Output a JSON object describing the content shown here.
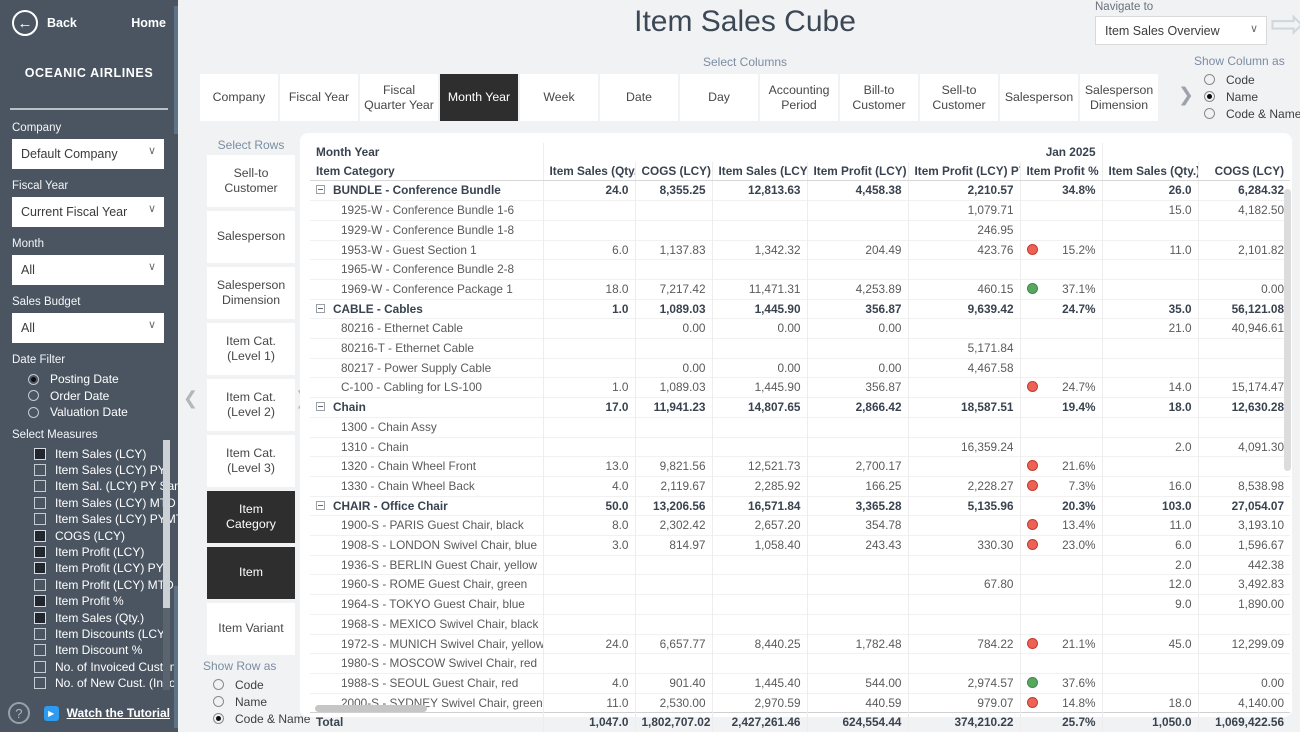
{
  "icons": {
    "back": "←",
    "dropdown_chevron": "∨",
    "navigate_arrow": "⇨",
    "chevron_right": "❯",
    "chevron_left": "❮",
    "play": "▶",
    "help": "?"
  },
  "sidebar": {
    "back_label": "Back",
    "home_label": "Home",
    "company_name": "OCEANIC AIRLINES",
    "filters": [
      {
        "label": "Company",
        "value": "Default Company"
      },
      {
        "label": "Fiscal Year",
        "value": "Current Fiscal Year"
      },
      {
        "label": "Month",
        "value": "All"
      },
      {
        "label": "Sales Budget",
        "value": "All"
      }
    ],
    "date_filter": {
      "label": "Date Filter",
      "options": [
        {
          "label": "Posting Date",
          "selected": true
        },
        {
          "label": "Order Date",
          "selected": false
        },
        {
          "label": "Valuation Date",
          "selected": false
        }
      ]
    },
    "measures": {
      "label": "Select Measures",
      "items": [
        {
          "label": "Item Sales (LCY)",
          "checked": true
        },
        {
          "label": "Item Sales (LCY) PY",
          "checked": false
        },
        {
          "label": "Item Sal. (LCY) PY Same Wk",
          "checked": false
        },
        {
          "label": "Item Sales (LCY) MTD",
          "checked": false
        },
        {
          "label": "Item Sales (LCY) PYMTD",
          "checked": false
        },
        {
          "label": "COGS (LCY)",
          "checked": true
        },
        {
          "label": "Item Profit (LCY)",
          "checked": true
        },
        {
          "label": "Item Profit (LCY) PY",
          "checked": true
        },
        {
          "label": "Item Profit (LCY) MTD",
          "checked": false
        },
        {
          "label": "Item Profit %",
          "checked": true
        },
        {
          "label": "Item Sales (Qty.)",
          "checked": true
        },
        {
          "label": "Item Discounts (LCY)",
          "checked": false
        },
        {
          "label": "Item Discount %",
          "checked": false
        },
        {
          "label": "No. of Invoiced Customers",
          "checked": false
        },
        {
          "label": "No. of New Cust. (Invoiced)",
          "checked": false
        }
      ]
    },
    "tutorial_label": "Watch the Tutorial"
  },
  "header": {
    "title": "Item Sales Cube",
    "navigate_to": {
      "label": "Navigate to",
      "value": "Item Sales Overview"
    }
  },
  "columns_panel": {
    "label": "Select Columns",
    "tabs": [
      {
        "label": "Company",
        "active": false
      },
      {
        "label": "Fiscal Year",
        "active": false
      },
      {
        "label": "Fiscal Quarter Year",
        "active": false
      },
      {
        "label": "Month Year",
        "active": true
      },
      {
        "label": "Week",
        "active": false
      },
      {
        "label": "Date",
        "active": false
      },
      {
        "label": "Day",
        "active": false
      },
      {
        "label": "Accounting Period",
        "active": false
      },
      {
        "label": "Bill-to Customer",
        "active": false
      },
      {
        "label": "Sell-to Customer",
        "active": false
      },
      {
        "label": "Salesperson",
        "active": false
      },
      {
        "label": "Salesperson Dimension",
        "active": false
      }
    ],
    "show_column_as": {
      "label": "Show Column as",
      "options": [
        {
          "label": "Code",
          "selected": false
        },
        {
          "label": "Name",
          "selected": true
        },
        {
          "label": "Code & Name",
          "selected": false
        }
      ]
    }
  },
  "rows_panel": {
    "label": "Select Rows",
    "buttons": [
      {
        "label": "Sell-to Customer",
        "active": false
      },
      {
        "label": "Salesperson",
        "active": false
      },
      {
        "label": "Salesperson Dimension",
        "active": false
      },
      {
        "label": "Item Cat. (Level 1)",
        "active": false
      },
      {
        "label": "Item Cat. (Level 2)",
        "active": false
      },
      {
        "label": "Item Cat. (Level 3)",
        "active": false
      },
      {
        "label": "Item Category",
        "active": true
      },
      {
        "label": "Item",
        "active": true
      },
      {
        "label": "Item Variant",
        "active": false
      }
    ],
    "show_row_as": {
      "label": "Show Row as",
      "options": [
        {
          "label": "Code",
          "selected": false
        },
        {
          "label": "Name",
          "selected": false
        },
        {
          "label": "Code & Name",
          "selected": true
        }
      ]
    }
  },
  "table": {
    "group": {
      "row_label": "Month Year",
      "month_label": "Jan 2025"
    },
    "columns": [
      "Item Category",
      "Item Sales (Qty.)",
      "COGS (LCY)",
      "Item Sales (LCY)",
      "Item Profit (LCY)",
      "Item Profit (LCY) PY",
      "Item Profit %",
      "Item Sales (Qty.)",
      "COGS (LCY)"
    ],
    "rows": [
      {
        "label": "BUNDLE - Conference Bundle",
        "level": "cat",
        "dot": null,
        "values": [
          "24.0",
          "8,355.25",
          "12,813.63",
          "4,458.38",
          "2,210.57",
          "34.8%",
          "26.0",
          "6,284.32"
        ]
      },
      {
        "label": "1925-W - Conference Bundle 1-6",
        "level": "item",
        "dot": null,
        "values": [
          "",
          "",
          "",
          "",
          "1,079.71",
          "",
          "15.0",
          "4,182.50"
        ]
      },
      {
        "label": "1929-W - Conference Bundle 1-8",
        "level": "item",
        "dot": null,
        "values": [
          "",
          "",
          "",
          "",
          "246.95",
          "",
          "",
          ""
        ]
      },
      {
        "label": "1953-W - Guest Section 1",
        "level": "item",
        "dot": "red",
        "values": [
          "6.0",
          "1,137.83",
          "1,342.32",
          "204.49",
          "423.76",
          "15.2%",
          "11.0",
          "2,101.82"
        ]
      },
      {
        "label": "1965-W - Conference Bundle 2-8",
        "level": "item",
        "dot": null,
        "values": [
          "",
          "",
          "",
          "",
          "",
          "",
          "",
          ""
        ]
      },
      {
        "label": "1969-W - Conference Package 1",
        "level": "item",
        "dot": "green",
        "values": [
          "18.0",
          "7,217.42",
          "11,471.31",
          "4,253.89",
          "460.15",
          "37.1%",
          "",
          "0.00"
        ]
      },
      {
        "label": "CABLE - Cables",
        "level": "cat",
        "dot": null,
        "values": [
          "1.0",
          "1,089.03",
          "1,445.90",
          "356.87",
          "9,639.42",
          "24.7%",
          "35.0",
          "56,121.08"
        ]
      },
      {
        "label": "80216 - Ethernet Cable",
        "level": "item",
        "dot": null,
        "values": [
          "",
          "0.00",
          "0.00",
          "0.00",
          "",
          "",
          "21.0",
          "40,946.61"
        ]
      },
      {
        "label": "80216-T - Ethernet Cable",
        "level": "item",
        "dot": null,
        "values": [
          "",
          "",
          "",
          "",
          "5,171.84",
          "",
          "",
          ""
        ]
      },
      {
        "label": "80217 - Power Supply Cable",
        "level": "item",
        "dot": null,
        "values": [
          "",
          "0.00",
          "0.00",
          "0.00",
          "4,467.58",
          "",
          "",
          ""
        ]
      },
      {
        "label": "C-100 - Cabling for LS-100",
        "level": "item",
        "dot": "red",
        "values": [
          "1.0",
          "1,089.03",
          "1,445.90",
          "356.87",
          "",
          "24.7%",
          "14.0",
          "15,174.47"
        ]
      },
      {
        "label": "Chain",
        "level": "cat",
        "dot": null,
        "values": [
          "17.0",
          "11,941.23",
          "14,807.65",
          "2,866.42",
          "18,587.51",
          "19.4%",
          "18.0",
          "12,630.28"
        ]
      },
      {
        "label": "1300 - Chain Assy",
        "level": "item",
        "dot": null,
        "values": [
          "",
          "",
          "",
          "",
          "",
          "",
          "",
          ""
        ]
      },
      {
        "label": "1310 - Chain",
        "level": "item",
        "dot": null,
        "values": [
          "",
          "",
          "",
          "",
          "16,359.24",
          "",
          "2.0",
          "4,091.30"
        ]
      },
      {
        "label": "1320 - Chain Wheel Front",
        "level": "item",
        "dot": "red",
        "values": [
          "13.0",
          "9,821.56",
          "12,521.73",
          "2,700.17",
          "",
          "21.6%",
          "",
          ""
        ]
      },
      {
        "label": "1330 - Chain Wheel Back",
        "level": "item",
        "dot": "red",
        "values": [
          "4.0",
          "2,119.67",
          "2,285.92",
          "166.25",
          "2,228.27",
          "7.3%",
          "16.0",
          "8,538.98"
        ]
      },
      {
        "label": "CHAIR - Office Chair",
        "level": "cat",
        "dot": null,
        "values": [
          "50.0",
          "13,206.56",
          "16,571.84",
          "3,365.28",
          "5,135.96",
          "20.3%",
          "103.0",
          "27,054.07"
        ]
      },
      {
        "label": "1900-S - PARIS Guest Chair, black",
        "level": "item",
        "dot": "red",
        "values": [
          "8.0",
          "2,302.42",
          "2,657.20",
          "354.78",
          "",
          "13.4%",
          "11.0",
          "3,193.10"
        ]
      },
      {
        "label": "1908-S - LONDON Swivel Chair, blue",
        "level": "item",
        "dot": "red",
        "values": [
          "3.0",
          "814.97",
          "1,058.40",
          "243.43",
          "330.30",
          "23.0%",
          "6.0",
          "1,596.67"
        ]
      },
      {
        "label": "1936-S - BERLIN Guest Chair, yellow",
        "level": "item",
        "dot": null,
        "values": [
          "",
          "",
          "",
          "",
          "",
          "",
          "2.0",
          "442.38"
        ]
      },
      {
        "label": "1960-S - ROME Guest Chair, green",
        "level": "item",
        "dot": null,
        "values": [
          "",
          "",
          "",
          "",
          "67.80",
          "",
          "12.0",
          "3,492.83"
        ]
      },
      {
        "label": "1964-S - TOKYO Guest Chair, blue",
        "level": "item",
        "dot": null,
        "values": [
          "",
          "",
          "",
          "",
          "",
          "",
          "9.0",
          "1,890.00"
        ]
      },
      {
        "label": "1968-S - MEXICO Swivel Chair, black",
        "level": "item",
        "dot": null,
        "values": [
          "",
          "",
          "",
          "",
          "",
          "",
          "",
          ""
        ]
      },
      {
        "label": "1972-S - MUNICH Swivel Chair, yellow",
        "level": "item",
        "dot": "red",
        "values": [
          "24.0",
          "6,657.77",
          "8,440.25",
          "1,782.48",
          "784.22",
          "21.1%",
          "45.0",
          "12,299.09"
        ]
      },
      {
        "label": "1980-S - MOSCOW Swivel Chair, red",
        "level": "item",
        "dot": null,
        "values": [
          "",
          "",
          "",
          "",
          "",
          "",
          "",
          ""
        ]
      },
      {
        "label": "1988-S - SEOUL Guest Chair, red",
        "level": "item",
        "dot": "green",
        "values": [
          "4.0",
          "901.40",
          "1,445.40",
          "544.00",
          "2,974.57",
          "37.6%",
          "",
          "0.00"
        ]
      },
      {
        "label": "2000-S - SYDNEY Swivel Chair, green",
        "level": "item",
        "dot": "red",
        "values": [
          "11.0",
          "2,530.00",
          "2,970.59",
          "440.59",
          "979.07",
          "14.8%",
          "18.0",
          "4,140.00"
        ]
      },
      {
        "label": "Total",
        "level": "total",
        "dot": null,
        "values": [
          "1,047.0",
          "1,802,707.02",
          "2,427,261.46",
          "624,554.44",
          "374,210.22",
          "25.7%",
          "1,050.0",
          "1,069,422.56"
        ]
      }
    ]
  }
}
